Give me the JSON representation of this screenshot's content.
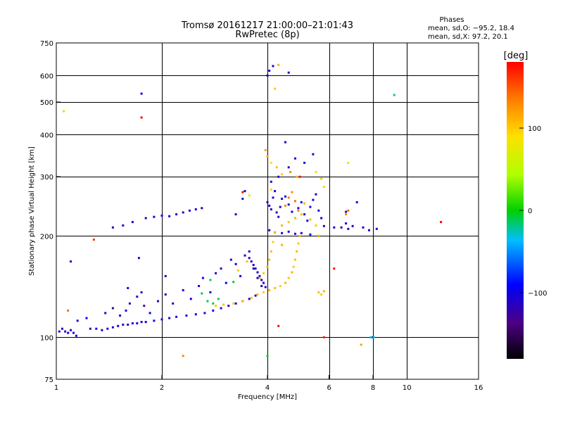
{
  "chart_data": {
    "type": "scatter",
    "title": "Tromsø 20161217 21:00:00–21:01:43",
    "subtitle": "RwPretec (8p)",
    "xlabel": "Frequency [MHz]",
    "ylabel": "Stationary phase Virtual Height [km]",
    "x_scale": "log2",
    "y_scale": "log",
    "xlim": [
      1,
      16
    ],
    "ylim": [
      75,
      750
    ],
    "x_ticks": [
      1,
      2,
      4,
      6,
      8,
      10,
      16
    ],
    "x_tick_labels": [
      "1",
      "2",
      "4",
      "6",
      "8",
      "10",
      "16"
    ],
    "y_ticks": [
      75,
      100,
      200,
      300,
      400,
      500,
      600,
      750
    ],
    "y_tick_labels": [
      "75",
      "100",
      "200",
      "300",
      "400",
      "500",
      "600",
      "750"
    ],
    "grid": true,
    "stats": {
      "title": "Phases",
      "line1": "mean, sd,O: −95.2, 18.4",
      "line2": "mean, sd,X:  97.2, 20.1"
    },
    "colorbar": {
      "label": "[deg]",
      "min": -180,
      "max": 180,
      "ticks": [
        100,
        0,
        -100
      ],
      "tick_labels": [
        "100",
        "0",
        "−100"
      ]
    },
    "series": [
      {
        "points": [
          [
            1.02,
            104,
            -110
          ],
          [
            1.04,
            106,
            -105
          ],
          [
            1.06,
            104,
            -115
          ],
          [
            1.08,
            103,
            -100
          ],
          [
            1.1,
            105,
            -108
          ],
          [
            1.12,
            103,
            -112
          ],
          [
            1.14,
            101,
            -95
          ],
          [
            1.25,
            106,
            -110
          ],
          [
            1.3,
            106,
            -105
          ],
          [
            1.35,
            105,
            -118
          ],
          [
            1.4,
            106,
            -112
          ],
          [
            1.45,
            107,
            -108
          ],
          [
            1.5,
            108,
            -100
          ],
          [
            1.55,
            109,
            -110
          ],
          [
            1.6,
            109,
            -115
          ],
          [
            1.65,
            110,
            -105
          ],
          [
            1.7,
            110,
            -112
          ],
          [
            1.75,
            111,
            -108
          ],
          [
            1.8,
            111,
            -100
          ],
          [
            1.9,
            112,
            -110
          ],
          [
            2.0,
            113,
            -105
          ],
          [
            2.1,
            114,
            -112
          ],
          [
            2.2,
            115,
            -98
          ],
          [
            2.35,
            116,
            -108
          ],
          [
            2.5,
            117,
            -102
          ],
          [
            2.65,
            118,
            -110
          ],
          [
            2.8,
            120,
            -105
          ],
          [
            2.95,
            122,
            -112
          ],
          [
            3.1,
            124,
            -108
          ],
          [
            3.25,
            126,
            -100
          ],
          [
            3.4,
            128,
            -110
          ],
          [
            3.55,
            130,
            -105
          ],
          [
            3.7,
            133,
            -112
          ],
          [
            1.15,
            112,
            -110
          ],
          [
            1.22,
            114,
            -95
          ],
          [
            1.38,
            118,
            -105
          ],
          [
            1.45,
            122,
            -140
          ],
          [
            1.52,
            116,
            -112
          ],
          [
            1.58,
            120,
            -102
          ],
          [
            1.62,
            126,
            -110
          ],
          [
            1.7,
            132,
            -108
          ],
          [
            1.78,
            124,
            -135
          ],
          [
            1.85,
            118,
            -100
          ],
          [
            1.95,
            128,
            -112
          ],
          [
            2.05,
            134,
            -105
          ],
          [
            2.15,
            126,
            -110
          ],
          [
            2.3,
            138,
            -95
          ],
          [
            2.42,
            130,
            -108
          ],
          [
            2.55,
            142,
            -112
          ],
          [
            2.62,
            150,
            -100
          ],
          [
            2.75,
            136,
            -110
          ],
          [
            2.85,
            155,
            -105
          ],
          [
            2.95,
            160,
            -112
          ],
          [
            3.05,
            145,
            -95
          ],
          [
            3.15,
            170,
            -108
          ],
          [
            3.25,
            165,
            -110
          ],
          [
            3.35,
            152,
            -102
          ],
          [
            3.45,
            175,
            -112
          ],
          [
            3.55,
            180,
            -105
          ],
          [
            3.65,
            160,
            -110
          ],
          [
            3.75,
            150,
            -98
          ],
          [
            3.85,
            142,
            -112
          ],
          [
            2.7,
            128,
            -10
          ],
          [
            2.8,
            126,
            -5
          ],
          [
            2.9,
            130,
            -15
          ],
          [
            1.6,
            140,
            -108
          ],
          [
            1.75,
            136,
            -115
          ],
          [
            2.05,
            152,
            -100
          ],
          [
            1.55,
            215,
            -110
          ],
          [
            1.65,
            220,
            -105
          ],
          [
            1.8,
            226,
            -112
          ],
          [
            1.9,
            228,
            -108
          ],
          [
            2.0,
            230,
            -100
          ],
          [
            2.1,
            229,
            -110
          ],
          [
            2.2,
            232,
            -105
          ],
          [
            2.3,
            235,
            -112
          ],
          [
            2.4,
            238,
            -108
          ],
          [
            2.5,
            240,
            -100
          ],
          [
            2.6,
            242,
            -110
          ],
          [
            1.45,
            212,
            -108
          ],
          [
            3.25,
            232,
            -105
          ],
          [
            3.4,
            258,
            -112
          ],
          [
            3.45,
            272,
            -108
          ],
          [
            3.55,
            264,
            80
          ],
          [
            4.0,
            252,
            -110
          ],
          [
            4.05,
            246,
            -105
          ],
          [
            4.1,
            240,
            -112
          ],
          [
            4.15,
            260,
            -108
          ],
          [
            4.2,
            272,
            -100
          ],
          [
            4.25,
            235,
            -110
          ],
          [
            4.3,
            228,
            -105
          ],
          [
            4.35,
            244,
            -112
          ],
          [
            4.4,
            258,
            -108
          ],
          [
            4.5,
            262,
            -100
          ],
          [
            4.6,
            248,
            -110
          ],
          [
            4.7,
            236,
            -105
          ],
          [
            4.8,
            226,
            -112
          ],
          [
            4.9,
            242,
            -108
          ],
          [
            5.0,
            252,
            -100
          ],
          [
            5.1,
            232,
            -110
          ],
          [
            5.2,
            222,
            -105
          ],
          [
            5.3,
            244,
            -112
          ],
          [
            5.4,
            256,
            -108
          ],
          [
            5.5,
            266,
            -100
          ],
          [
            5.6,
            238,
            -110
          ],
          [
            5.7,
            226,
            -105
          ],
          [
            5.8,
            214,
            -112
          ],
          [
            4.05,
            208,
            -108
          ],
          [
            4.2,
            205,
            -100
          ],
          [
            4.4,
            204,
            -110
          ],
          [
            4.6,
            206,
            -105
          ],
          [
            4.8,
            203,
            -112
          ],
          [
            5.0,
            204,
            -108
          ],
          [
            5.3,
            202,
            -100
          ],
          [
            5.6,
            200,
            -110
          ],
          [
            4.1,
            290,
            -105
          ],
          [
            4.3,
            300,
            -112
          ],
          [
            4.6,
            320,
            -108
          ],
          [
            4.8,
            340,
            -100
          ],
          [
            5.1,
            330,
            -110
          ],
          [
            5.4,
            350,
            -105
          ],
          [
            4.5,
            380,
            -112
          ],
          [
            3.55,
            172,
            -110
          ],
          [
            3.6,
            168,
            -105
          ],
          [
            3.65,
            164,
            -112
          ],
          [
            3.7,
            160,
            -108
          ],
          [
            3.75,
            156,
            -100
          ],
          [
            3.8,
            152,
            -110
          ],
          [
            3.85,
            148,
            -105
          ],
          [
            3.9,
            145,
            -112
          ],
          [
            3.95,
            141,
            -108
          ],
          [
            6.5,
            212,
            -110
          ],
          [
            6.7,
            218,
            -105
          ],
          [
            6.8,
            210,
            -112
          ],
          [
            7.0,
            214,
            -108
          ],
          [
            7.5,
            212,
            -100
          ],
          [
            7.8,
            208,
            -110
          ],
          [
            8.2,
            210,
            -105
          ],
          [
            4.0,
            600,
            -108
          ],
          [
            4.05,
            620,
            -100
          ],
          [
            4.15,
            640,
            -110
          ],
          [
            4.6,
            612,
            -105
          ],
          [
            1.1,
            168,
            -112
          ],
          [
            1.72,
            172,
            -108
          ],
          [
            1.75,
            530,
            -100
          ],
          [
            6.7,
            236,
            -110
          ],
          [
            7.2,
            252,
            -105
          ],
          [
            6.2,
            212,
            -112
          ],
          [
            8.0,
            100,
            -108
          ]
        ]
      },
      {
        "points": [
          [
            2.85,
            124,
            100
          ],
          [
            3.0,
            125,
            105
          ],
          [
            3.2,
            126,
            98
          ],
          [
            3.4,
            128,
            110
          ],
          [
            3.6,
            131,
            102
          ],
          [
            3.75,
            134,
            108
          ],
          [
            3.9,
            136,
            100
          ],
          [
            4.05,
            138,
            110
          ],
          [
            4.2,
            140,
            105
          ],
          [
            4.35,
            142,
            98
          ],
          [
            4.5,
            145,
            108
          ],
          [
            4.6,
            150,
            102
          ],
          [
            4.7,
            156,
            110
          ],
          [
            4.75,
            162,
            100
          ],
          [
            4.8,
            170,
            105
          ],
          [
            4.85,
            180,
            110
          ],
          [
            4.9,
            190,
            102
          ],
          [
            4.95,
            200,
            108
          ],
          [
            3.8,
            150,
            105
          ],
          [
            3.9,
            155,
            100
          ],
          [
            4.0,
            162,
            110
          ],
          [
            4.05,
            170,
            102
          ],
          [
            4.1,
            180,
            108
          ],
          [
            4.15,
            192,
            98
          ],
          [
            4.2,
            205,
            105
          ],
          [
            4.4,
            215,
            110
          ],
          [
            4.6,
            220,
            100
          ],
          [
            4.8,
            226,
            108
          ],
          [
            5.0,
            232,
            102
          ],
          [
            4.5,
            246,
            130
          ],
          [
            4.6,
            260,
            135
          ],
          [
            4.7,
            270,
            128
          ],
          [
            4.8,
            254,
            140
          ],
          [
            4.9,
            238,
            132
          ],
          [
            5.1,
            250,
            110
          ],
          [
            5.3,
            224,
            105
          ],
          [
            5.5,
            215,
            100
          ],
          [
            5.6,
            200,
            108
          ],
          [
            5.8,
            280,
            95
          ],
          [
            5.7,
            296,
            102
          ],
          [
            5.5,
            310,
            90
          ],
          [
            3.95,
            360,
            120
          ],
          [
            4.0,
            345,
            115
          ],
          [
            4.1,
            330,
            90
          ],
          [
            4.25,
            320,
            105
          ],
          [
            4.4,
            305,
            100
          ],
          [
            4.65,
            310,
            130
          ],
          [
            4.85,
            300,
            110
          ],
          [
            6.8,
            238,
            140
          ],
          [
            6.7,
            232,
            130
          ],
          [
            5.7,
            134,
            100
          ],
          [
            5.6,
            136,
            105
          ],
          [
            5.8,
            137,
            110
          ],
          [
            4.2,
            548,
            100
          ],
          [
            4.3,
            645,
            110
          ],
          [
            2.3,
            88,
            130
          ],
          [
            4.1,
            275,
            95
          ],
          [
            1.28,
            195,
            160
          ],
          [
            1.08,
            120,
            140
          ],
          [
            7.4,
            95,
            120
          ],
          [
            3.3,
            158,
            100
          ],
          [
            3.5,
            168,
            105
          ],
          [
            4.4,
            188,
            110
          ]
        ]
      },
      {
        "points": [
          [
            1.05,
            470,
            40
          ],
          [
            9.2,
            525,
            -20
          ],
          [
            8.05,
            100,
            -30
          ],
          [
            7.9,
            100,
            -25
          ],
          [
            2.75,
            148,
            -15
          ],
          [
            2.6,
            135,
            -10
          ],
          [
            3.2,
            146,
            -5
          ],
          [
            1.75,
            450,
            180
          ],
          [
            12.5,
            220,
            180
          ],
          [
            5.8,
            100,
            170
          ],
          [
            4.3,
            108,
            175
          ],
          [
            6.2,
            160,
            175
          ],
          [
            3.4,
            270,
            175
          ],
          [
            4.95,
            300,
            175
          ],
          [
            6.8,
            330,
            60
          ],
          [
            4.0,
            88,
            -5
          ]
        ]
      }
    ]
  }
}
